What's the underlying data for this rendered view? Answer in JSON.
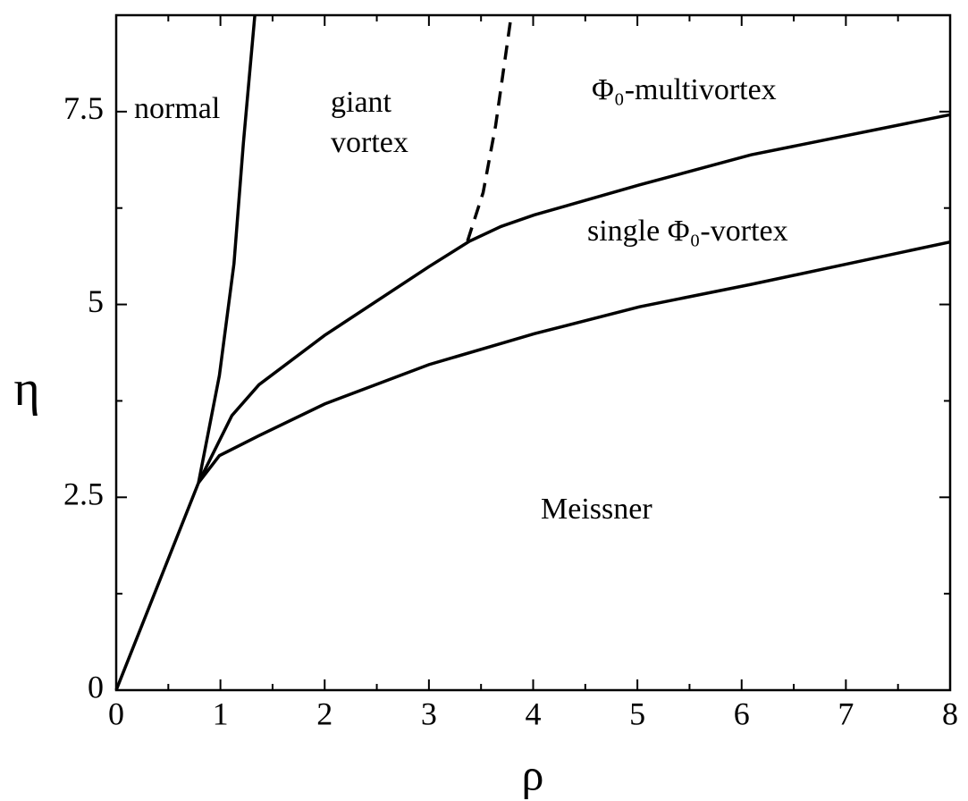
{
  "chart_data": {
    "type": "line",
    "xlabel": "ρ",
    "ylabel": "η",
    "xlim": [
      0,
      8
    ],
    "ylim": [
      0,
      8.75
    ],
    "xticks": [
      0,
      1,
      2,
      3,
      4,
      5,
      6,
      7,
      8
    ],
    "yticks": [
      0,
      2.5,
      5,
      7.5
    ],
    "xticks_minor": [
      0.5,
      1.5,
      2.5,
      3.5,
      4.5,
      5.5,
      6.5,
      7.5
    ],
    "yticks_minor": [
      1.25,
      3.75,
      6.25
    ],
    "color": "#000000",
    "series": [
      {
        "x": [
          0,
          0.79,
          0.99,
          1.13,
          1.22,
          1.33
        ],
        "values": [
          0,
          2.69,
          4.08,
          5.53,
          7.09,
          8.75
        ],
        "dashed": false
      },
      {
        "x": [
          0.79,
          1.11,
          1.37,
          2.0,
          3.0,
          3.39,
          3.69,
          4.01,
          5.02,
          6.09,
          8.0
        ],
        "values": [
          2.69,
          3.56,
          3.96,
          4.6,
          5.49,
          5.82,
          6.01,
          6.16,
          6.55,
          6.94,
          7.46
        ],
        "dashed": false
      },
      {
        "x": [
          0.79,
          0.99,
          1.37,
          2.0,
          3.0,
          4.01,
          5.02,
          6.09,
          7.03,
          8.0
        ],
        "values": [
          2.69,
          3.04,
          3.3,
          3.71,
          4.22,
          4.62,
          4.97,
          5.26,
          5.53,
          5.81
        ],
        "dashed": false
      },
      {
        "x": [
          3.37,
          3.52,
          3.64,
          3.79
        ],
        "values": [
          5.82,
          6.45,
          7.32,
          8.75
        ],
        "dashed": true
      }
    ],
    "annotations": [
      "normal",
      "giant",
      "vortex",
      "Φ₀-multivortex",
      "single Φ₀-vortex",
      "Meissner"
    ]
  }
}
